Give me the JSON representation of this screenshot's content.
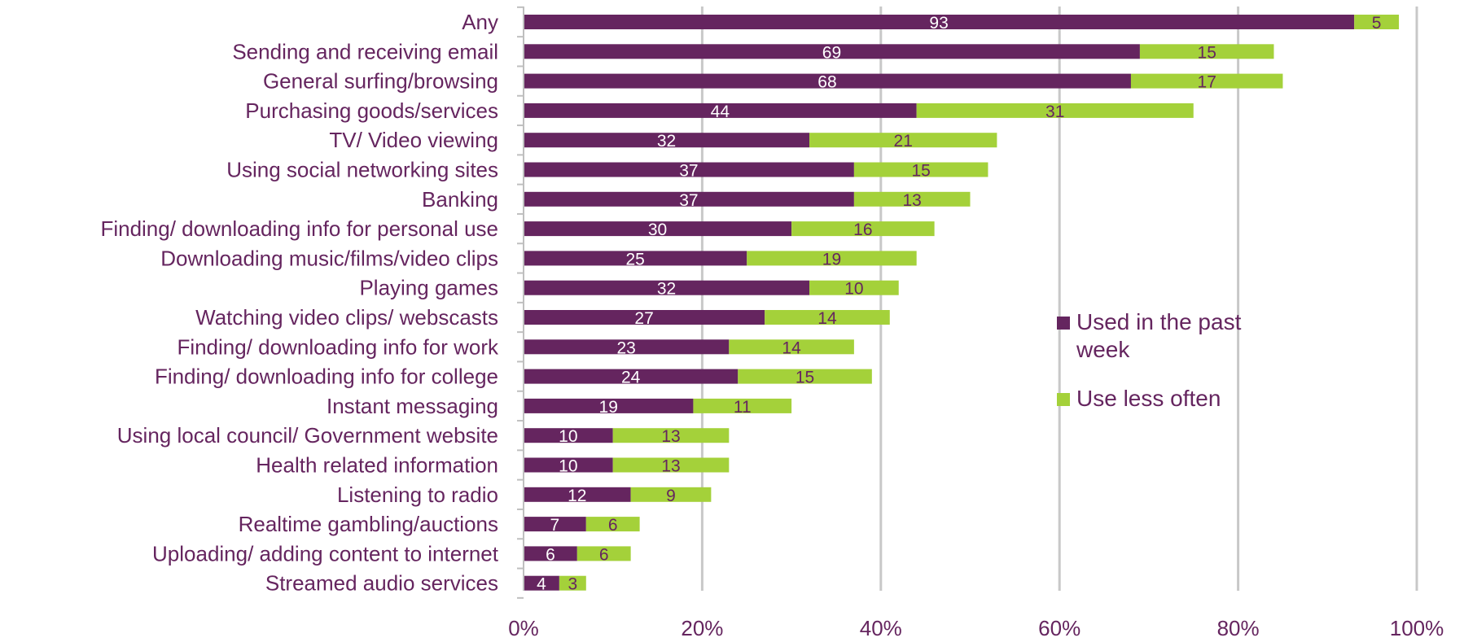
{
  "chart_data": {
    "type": "bar",
    "orientation": "horizontal",
    "stacked": true,
    "categories": [
      "Any",
      "Sending and receiving email",
      "General surfing/browsing",
      "Purchasing goods/services",
      "TV/ Video viewing",
      "Using social networking sites",
      "Banking",
      "Finding/ downloading info for personal use",
      "Downloading music/films/video clips",
      "Playing games",
      "Watching video clips/ webscasts",
      "Finding/ downloading info for work",
      "Finding/ downloading info for college",
      "Instant messaging",
      "Using local council/ Government website",
      "Health related information",
      "Listening to radio",
      "Realtime gambling/auctions",
      "Uploading/ adding content to internet",
      "Streamed audio services"
    ],
    "series": [
      {
        "name": "Used in the past week",
        "color": "#65255f",
        "label_color": "#ffffff",
        "values": [
          93,
          69,
          68,
          44,
          32,
          37,
          37,
          30,
          25,
          32,
          27,
          23,
          24,
          19,
          10,
          10,
          12,
          7,
          6,
          4
        ]
      },
      {
        "name": "Use less often",
        "color": "#a4d13a",
        "label_color": "#65255f",
        "values": [
          5,
          15,
          17,
          31,
          21,
          15,
          13,
          16,
          19,
          10,
          14,
          14,
          15,
          11,
          13,
          13,
          9,
          6,
          6,
          3
        ]
      }
    ],
    "xlim": [
      0,
      100
    ],
    "x_ticks": [
      "0%",
      "20%",
      "40%",
      "60%",
      "80%",
      "100%"
    ],
    "x_tick_values": [
      0,
      20,
      40,
      60,
      80,
      100
    ],
    "grid": true,
    "gridline_color": "#c8c8c8",
    "text_color": "#65255f",
    "legend": {
      "placement": "center-right",
      "entries": [
        [
          "Used in the past",
          "week"
        ],
        [
          "Use less often"
        ]
      ]
    }
  }
}
